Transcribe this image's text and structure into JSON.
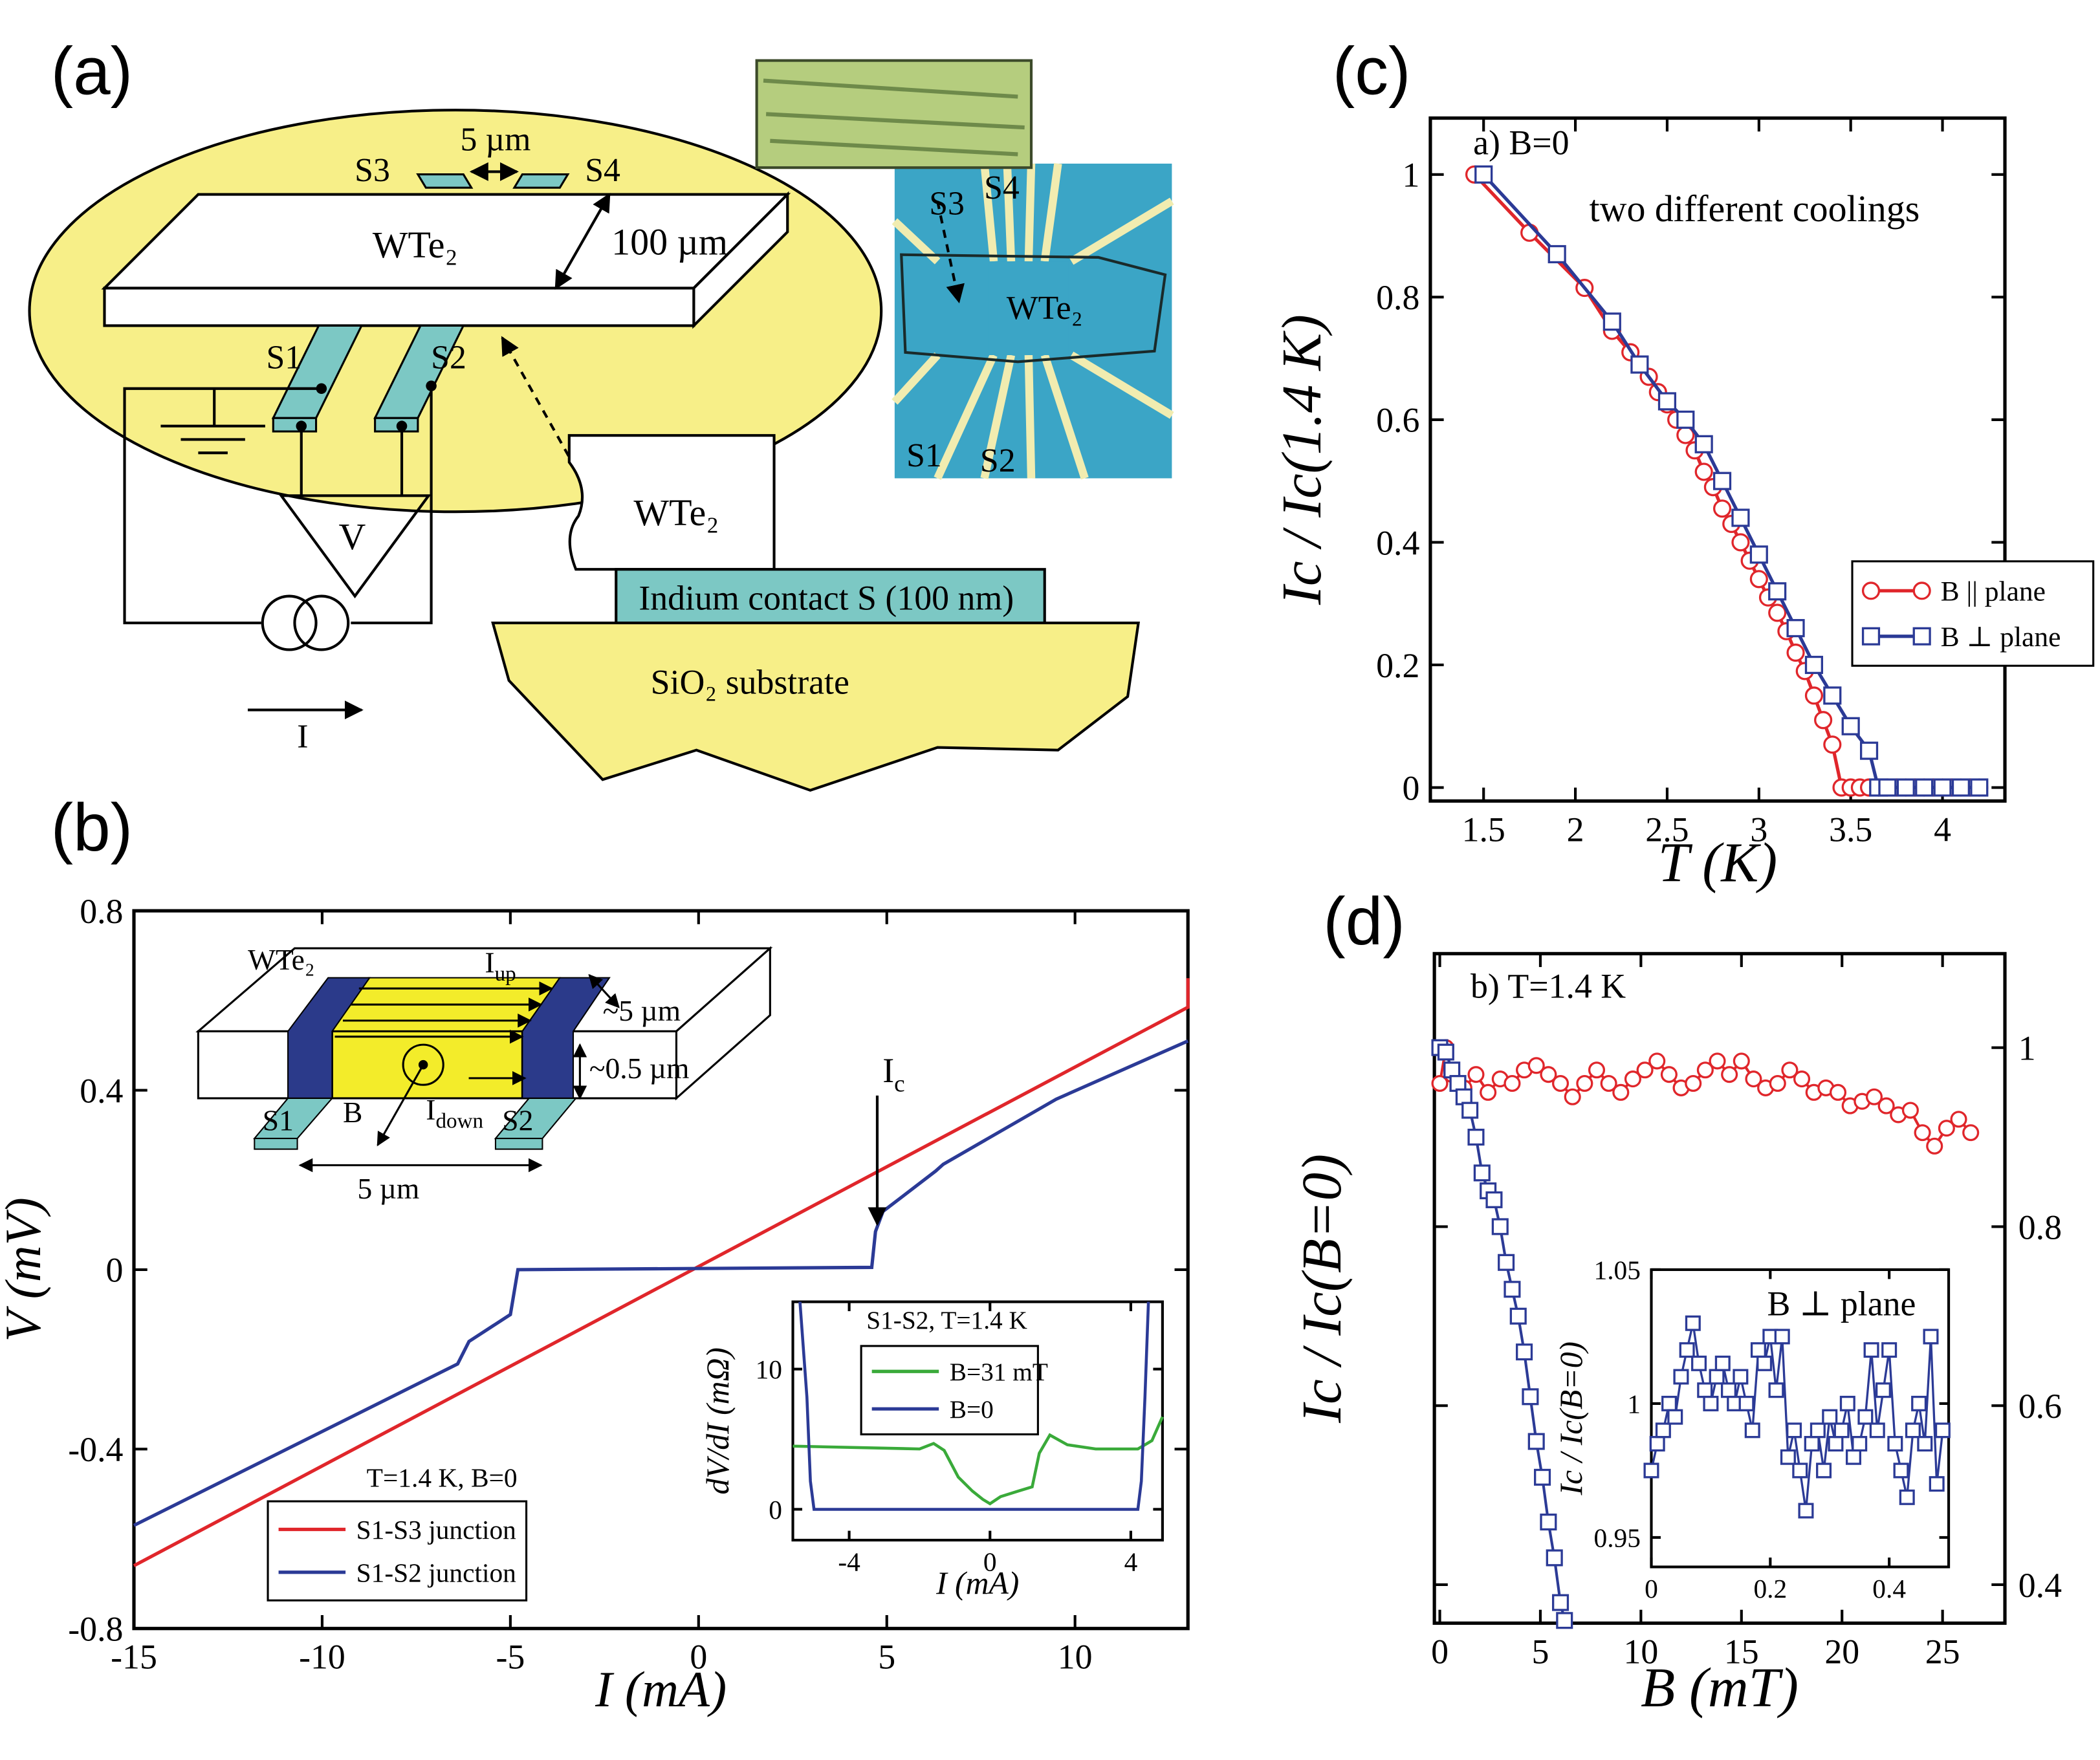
{
  "panel_labels": [
    "(a)",
    "(b)",
    "(c)",
    "(d)"
  ],
  "diagram_a": {
    "labels": [
      "S3",
      "5 µm",
      "S4",
      "WTe₂",
      "100 µm",
      "S1",
      "S2",
      "V",
      "I",
      "WTe₂",
      "Indium contact S (100 nm)",
      "SiO₂ substrate",
      "S3",
      "S4",
      "WTe₂",
      "S1",
      "S2"
    ]
  },
  "diagram_b": {
    "labels": [
      "WTe₂",
      {
        "text": "I",
        "sub": "up"
      },
      "~5 µm",
      "~0.5 µm",
      "S1",
      "S2",
      "B",
      {
        "text": "I",
        "sub": "down"
      },
      "5 µm"
    ]
  },
  "chart_data": [
    {
      "type": "line",
      "xlabel": "I (mA)",
      "ylabel": "V (mV)",
      "xlim": [
        -15,
        13
      ],
      "ylim": [
        -0.8,
        0.8
      ],
      "xticks": [
        -15,
        -10,
        -5,
        0,
        5,
        10
      ],
      "yticks": [
        -0.8,
        -0.4,
        0,
        0.4,
        0.8
      ],
      "legend": "lower left",
      "legend_title": "T=1.4 K, B=0",
      "annotation": {
        "text": "I",
        "sub": "c"
      },
      "series": [
        {
          "name": "S1-S3 junction",
          "color": "#e0262b",
          "x": [
            -15,
            13,
            13
          ],
          "values": [
            -0.66,
            0.585,
            0.65
          ]
        },
        {
          "name": "S1-S2 junction",
          "color": "#2b3a96",
          "x": [
            -15,
            -6.4,
            -6.1,
            -5,
            -4.8,
            4.6,
            4.7,
            4.9,
            6.3,
            6.5,
            9.5,
            13
          ],
          "values": [
            -0.57,
            -0.21,
            -0.16,
            -0.1,
            0,
            0.005,
            0.085,
            0.13,
            0.22,
            0.235,
            0.38,
            0.51
          ]
        }
      ]
    },
    {
      "type": "line",
      "xlabel": "I (mA)",
      "ylabel": "dV/dI (mΩ)",
      "xlim": [
        -5.6,
        4.9
      ],
      "ylim": [
        -2.2,
        14.8
      ],
      "xticks": [
        -4,
        0,
        4
      ],
      "yticks": [
        0,
        10
      ],
      "legend": "upper center",
      "legend_title": "S1-S2, T=1.4 K",
      "series": [
        {
          "name": "B=31 mT",
          "color": "#3aaa3a",
          "x": [
            -5.6,
            -2,
            -1.6,
            -1.3,
            -0.9,
            -0.5,
            -0.2,
            0,
            0.3,
            0.8,
            1.2,
            1.4,
            1.7,
            2.2,
            3,
            4.2,
            4.6,
            4.9
          ],
          "values": [
            4.5,
            4.3,
            4.7,
            4.2,
            2.3,
            1.3,
            0.7,
            0.4,
            0.9,
            1.3,
            1.6,
            4,
            5.3,
            4.6,
            4.3,
            4.3,
            4.9,
            6.6
          ]
        },
        {
          "name": "B=0",
          "color": "#2b3a96",
          "x": [
            -5.4,
            -5.2,
            -5.1,
            -5,
            4.2,
            4.3,
            4.4,
            4.5
          ],
          "values": [
            14.8,
            8,
            2,
            0,
            0,
            2,
            8,
            14.8
          ]
        }
      ]
    },
    {
      "type": "line",
      "xlabel": "T (K)",
      "ylabel": "Ic / Ic(1.4 K)",
      "xlim": [
        1.21,
        4.34
      ],
      "ylim": [
        -0.022,
        1.092
      ],
      "xticks": [
        1.5,
        2,
        2.5,
        3,
        3.5,
        4
      ],
      "yticks": [
        0,
        0.2,
        0.4,
        0.6,
        0.8,
        1
      ],
      "texts": [
        "a)  B=0",
        "two different coolings"
      ],
      "legend": "center right",
      "series": [
        {
          "name": "B || plane",
          "color": "#e0262b",
          "marker": "circle",
          "x": [
            1.45,
            1.75,
            2.05,
            2.2,
            2.3,
            2.4,
            2.45,
            2.5,
            2.55,
            2.6,
            2.65,
            2.7,
            2.75,
            2.8,
            2.85,
            2.9,
            2.95,
            3.0,
            3.05,
            3.1,
            3.15,
            3.2,
            3.25,
            3.3,
            3.35,
            3.4,
            3.45,
            3.5,
            3.55,
            3.6,
            3.65,
            3.7,
            3.75,
            3.8,
            3.85,
            3.9,
            3.95,
            4.0,
            4.05,
            4.1,
            4.15,
            4.2
          ],
          "values": [
            1.0,
            0.905,
            0.815,
            0.745,
            0.71,
            0.67,
            0.645,
            0.625,
            0.6,
            0.575,
            0.55,
            0.515,
            0.49,
            0.455,
            0.43,
            0.4,
            0.37,
            0.34,
            0.31,
            0.285,
            0.255,
            0.22,
            0.19,
            0.15,
            0.11,
            0.07,
            0,
            0,
            0,
            0,
            0,
            0,
            0,
            0,
            0,
            0,
            0,
            0,
            0,
            0,
            0,
            0
          ]
        },
        {
          "name": "B ⊥ plane",
          "color": "#2b3a96",
          "marker": "square",
          "x": [
            1.5,
            1.9,
            2.2,
            2.35,
            2.5,
            2.6,
            2.7,
            2.8,
            2.9,
            3.0,
            3.1,
            3.2,
            3.3,
            3.4,
            3.5,
            3.6,
            3.65,
            3.7,
            3.8,
            3.9,
            4.0,
            4.1,
            4.2
          ],
          "values": [
            1.0,
            0.87,
            0.76,
            0.69,
            0.63,
            0.6,
            0.56,
            0.5,
            0.44,
            0.38,
            0.32,
            0.26,
            0.2,
            0.15,
            0.1,
            0.06,
            0,
            0,
            0,
            0,
            0,
            0,
            0
          ]
        }
      ]
    },
    {
      "type": "line",
      "xlabel": "B (mT)",
      "ylabel": "Ic / Ic(B=0)",
      "xlim": [
        -0.27,
        28.1
      ],
      "ylim": [
        0.357,
        1.105
      ],
      "xticks": [
        0,
        5,
        10,
        15,
        20,
        25
      ],
      "yticks": [
        0.4,
        0.6,
        0.8,
        1
      ],
      "y_axis": "right",
      "texts": [
        "b)  T=1.4 K"
      ],
      "series": [
        {
          "color": "#e0262b",
          "marker": "circle",
          "x": [
            0,
            0.3,
            0.6,
            1.2,
            1.8,
            2.4,
            3,
            3.6,
            4.2,
            4.8,
            5.4,
            6,
            6.6,
            7.2,
            7.8,
            8.4,
            9,
            9.6,
            10.2,
            10.8,
            11.4,
            12,
            12.6,
            13.2,
            13.8,
            14.4,
            15,
            15.6,
            16.2,
            16.8,
            17.4,
            18,
            18.6,
            19.2,
            19.8,
            20.4,
            21,
            21.6,
            22.2,
            22.8,
            23.4,
            24,
            24.6,
            25.2,
            25.8,
            26.4
          ],
          "values": [
            0.96,
            1.0,
            0.97,
            0.955,
            0.97,
            0.95,
            0.965,
            0.96,
            0.975,
            0.98,
            0.97,
            0.96,
            0.945,
            0.96,
            0.975,
            0.96,
            0.95,
            0.965,
            0.975,
            0.985,
            0.97,
            0.955,
            0.96,
            0.975,
            0.985,
            0.97,
            0.985,
            0.965,
            0.955,
            0.96,
            0.975,
            0.965,
            0.95,
            0.955,
            0.95,
            0.935,
            0.94,
            0.945,
            0.935,
            0.925,
            0.93,
            0.905,
            0.89,
            0.91,
            0.92,
            0.905
          ]
        },
        {
          "color": "#2b3a96",
          "marker": "square",
          "x": [
            0,
            0.3,
            0.6,
            0.9,
            1.2,
            1.5,
            1.8,
            2.1,
            2.4,
            2.7,
            3,
            3.3,
            3.6,
            3.9,
            4.2,
            4.5,
            4.8,
            5.1,
            5.4,
            5.7,
            6,
            6.2
          ],
          "values": [
            1.0,
            0.995,
            0.975,
            0.96,
            0.945,
            0.93,
            0.9,
            0.86,
            0.84,
            0.83,
            0.8,
            0.76,
            0.73,
            0.7,
            0.66,
            0.61,
            0.56,
            0.52,
            0.47,
            0.43,
            0.38,
            0.36
          ]
        }
      ]
    },
    {
      "type": "line",
      "ylabel": "Ic / Ic(B=0)",
      "xlim": [
        0,
        0.5
      ],
      "ylim": [
        0.939,
        1.05
      ],
      "xticks": [
        0,
        0.2,
        0.4
      ],
      "yticks": [
        0.95,
        1,
        1.05
      ],
      "texts": [
        "B ⊥  plane"
      ],
      "series": [
        {
          "color": "#2b3a96",
          "marker": "square",
          "x": [
            0,
            0.01,
            0.02,
            0.03,
            0.04,
            0.05,
            0.06,
            0.07,
            0.08,
            0.09,
            0.1,
            0.11,
            0.12,
            0.13,
            0.14,
            0.15,
            0.16,
            0.17,
            0.18,
            0.19,
            0.2,
            0.21,
            0.22,
            0.23,
            0.24,
            0.25,
            0.26,
            0.27,
            0.28,
            0.29,
            0.3,
            0.31,
            0.32,
            0.33,
            0.34,
            0.35,
            0.36,
            0.37,
            0.38,
            0.39,
            0.4,
            0.41,
            0.42,
            0.43,
            0.44,
            0.45,
            0.46,
            0.47,
            0.48,
            0.49
          ],
          "values": [
            0.975,
            0.985,
            0.99,
            1.0,
            0.995,
            1.01,
            1.02,
            1.03,
            1.015,
            1.005,
            1.0,
            1.01,
            1.015,
            1.005,
            1.0,
            1.01,
            1.0,
            0.99,
            1.02,
            1.015,
            1.025,
            1.005,
            1.025,
            0.98,
            0.99,
            0.975,
            0.96,
            0.985,
            0.99,
            0.975,
            0.995,
            0.985,
            0.99,
            1.0,
            0.98,
            0.985,
            0.995,
            1.02,
            0.99,
            1.005,
            1.02,
            0.985,
            0.975,
            0.965,
            0.99,
            1.0,
            0.985,
            1.025,
            0.97,
            0.99
          ]
        }
      ]
    }
  ]
}
